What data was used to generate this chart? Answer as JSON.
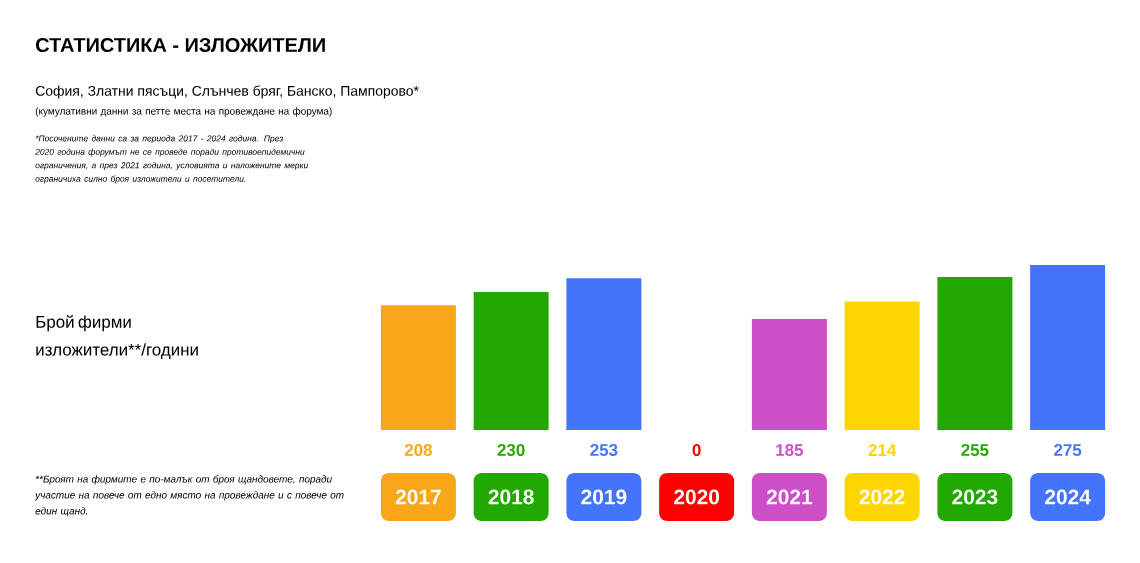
{
  "chart_data": {
    "type": "bar",
    "title": "СТАТИСТИКА - ИЗЛОЖИТЕЛИ",
    "subtitle": "София, Златни пясъци, Слънчев бряг, Банско, Пампорово*",
    "annotations": [
      "(кумулативни данни за петте места на провеждане на форума)",
      "*Посочените данни са за периода 2017 - 2024 година. През 2020 година форумът не се проведе поради противоепидемични ограничения, а през 2021 година, условията и наложените мерки ограничиха силно броя изложители и посетители.",
      "**Броят на фирмите е по-малък от броя щандовете, поради участие на повече от едно място на провеждане и с повече от един щанд.",
      "Брой фирми изложители**/години"
    ],
    "categories": [
      "2017",
      "2018",
      "2019",
      "2020",
      "2021",
      "2022",
      "2023",
      "2024"
    ],
    "values": [
      208,
      230,
      253,
      0,
      185,
      214,
      255,
      275
    ],
    "colors": [
      "#faa61a",
      "#22a800",
      "#4474fa",
      "#ff0000",
      "#cc4fc8",
      "#ffd500",
      "#22a800",
      "#4474fa"
    ],
    "data_labels": true
  }
}
